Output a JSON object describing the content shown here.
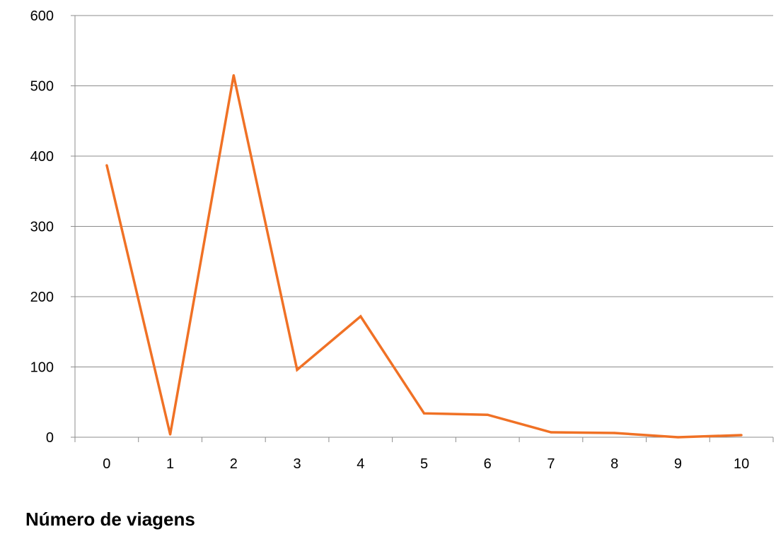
{
  "caption": "Número de viagens",
  "colors": {
    "series": "#F07125",
    "grid": "#8C8C8C",
    "axis": "#8C8C8C",
    "background": "#FFFFFF"
  },
  "chart_data": {
    "type": "line",
    "title": "",
    "xlabel": "",
    "ylabel": "",
    "categories": [
      "0",
      "1",
      "2",
      "3",
      "4",
      "5",
      "6",
      "7",
      "8",
      "9",
      "10"
    ],
    "series": [
      {
        "values": [
          387,
          4,
          515,
          96,
          172,
          34,
          32,
          7,
          6,
          0,
          3
        ]
      }
    ],
    "ylim": [
      0,
      600
    ],
    "yticks": [
      "0",
      "100",
      "200",
      "300",
      "400",
      "500",
      "600"
    ],
    "grid": "horizontal",
    "legend": "none"
  }
}
